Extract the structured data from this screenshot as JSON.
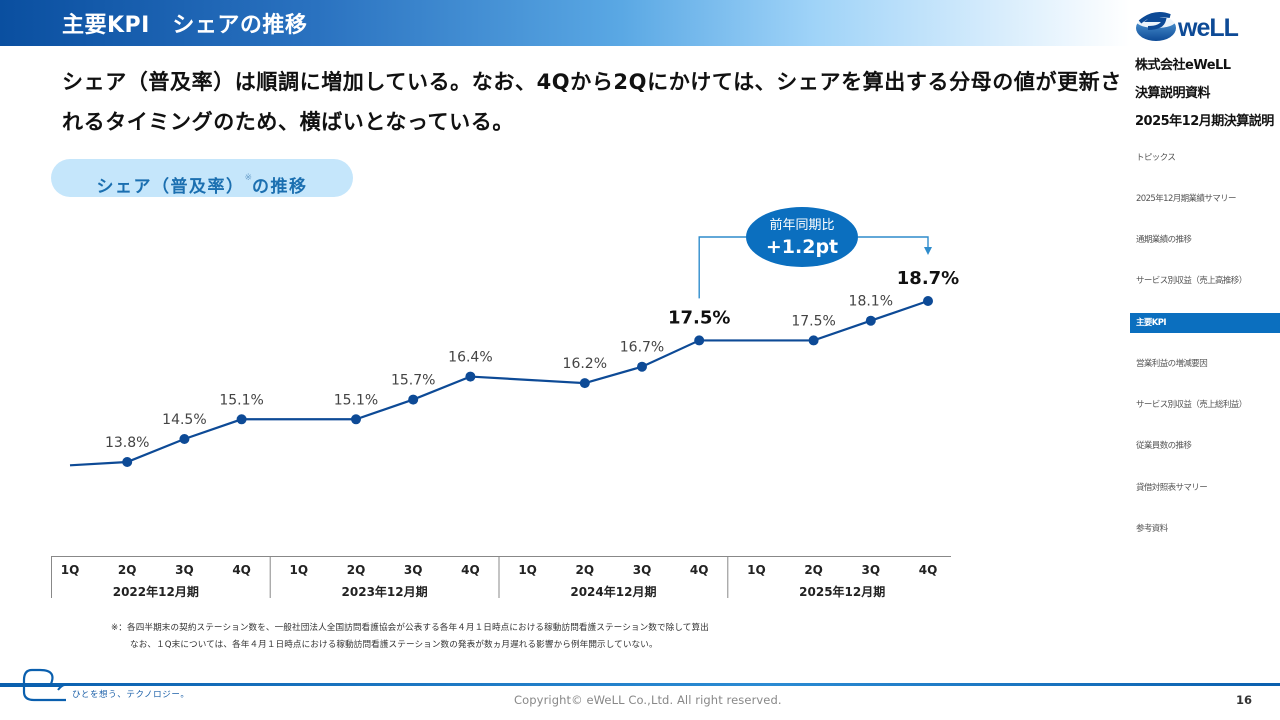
{
  "header": {
    "title": "主要KPI　シェアの推移"
  },
  "sidebar": {
    "logo_text": "eWeLL",
    "company": "株式会社eWeLL",
    "doc_type": "決算説明資料",
    "doc_period": "2025年12月期決算説明",
    "items": [
      {
        "label": "トピックス",
        "active": false
      },
      {
        "label": "2025年12月期業績サマリー",
        "active": false
      },
      {
        "label": "通期業績の推移",
        "active": false
      },
      {
        "label": "サービス別収益（売上高推移）",
        "active": false
      },
      {
        "label": "主要KPI",
        "active": true
      },
      {
        "label": "営業利益の増減要因",
        "active": false
      },
      {
        "label": "サービス別収益（売上総利益）",
        "active": false
      },
      {
        "label": "従業員数の推移",
        "active": false
      },
      {
        "label": "貸借対照表サマリー",
        "active": false
      },
      {
        "label": "参考資料",
        "active": false
      }
    ]
  },
  "lead_text": "シェア（普及率）は順調に増加している。なお、4Qから2Qにかけては、シェアを算出する分母の値が更新されるタイミングのため、横ばいとなっている。",
  "section_pill": {
    "label_main": "シェア（普及率）",
    "label_mark": "※",
    "label_tail": "の推移"
  },
  "callout": {
    "title": "前年同期比",
    "value": "+1.2pt"
  },
  "colors": {
    "line": "#0d4a96",
    "accent": "#0b6fbf",
    "callout_bg": "#0b6fbf",
    "pill_bg": "#c5e6fb",
    "pill_text": "#1b6fb0"
  },
  "chart_data": {
    "type": "line",
    "title": "シェア（普及率）の推移",
    "xlabel": "",
    "ylabel": "",
    "unit": "%",
    "x": [
      "1Q",
      "2Q",
      "3Q",
      "4Q",
      "1Q",
      "2Q",
      "3Q",
      "4Q",
      "1Q",
      "2Q",
      "3Q",
      "4Q",
      "1Q",
      "2Q",
      "3Q",
      "4Q"
    ],
    "groups": [
      {
        "label": "2022年12月期",
        "quarters": [
          "1Q",
          "2Q",
          "3Q",
          "4Q"
        ]
      },
      {
        "label": "2023年12月期",
        "quarters": [
          "1Q",
          "2Q",
          "3Q",
          "4Q"
        ]
      },
      {
        "label": "2024年12月期",
        "quarters": [
          "1Q",
          "2Q",
          "3Q",
          "4Q"
        ]
      },
      {
        "label": "2025年12月期",
        "quarters": [
          "1Q",
          "2Q",
          "3Q",
          "4Q"
        ]
      }
    ],
    "series": [
      {
        "name": "シェア",
        "values": [
          null,
          13.8,
          14.5,
          15.1,
          null,
          15.1,
          15.7,
          16.4,
          null,
          16.2,
          16.7,
          17.5,
          null,
          17.5,
          18.1,
          18.7
        ],
        "labels": [
          "",
          "13.8%",
          "14.5%",
          "15.1%",
          "",
          "15.1%",
          "15.7%",
          "16.4%",
          "",
          "16.2%",
          "16.7%",
          "17.5%",
          "",
          "17.5%",
          "18.1%",
          "18.7%"
        ],
        "emphasized": [
          11,
          15
        ]
      }
    ],
    "line_start_value": 13.7,
    "ylim": [
      12.5,
      19.5
    ],
    "grid": false,
    "legend": "none",
    "annotation": {
      "from_index": 11,
      "to_index": 15,
      "text": "前年同期比 +1.2pt"
    }
  },
  "footnote": {
    "line1": "※：各四半期末の契約ステーション数を、一般社団法人全国訪問看護協会が公表する各年４月１日時点における稼動訪問看護ステーション数で除して算出",
    "line2": "なお、１Q末については、各年４月１日時点における稼動訪問看護ステーション数の発表が数ヵ月遅れる影響から例年開示していない。"
  },
  "footer": {
    "tagline": "ひとを想う、テクノロジー。",
    "copyright": "Copyright© eWeLL Co.,Ltd. All right reserved.",
    "page_number": "16"
  }
}
